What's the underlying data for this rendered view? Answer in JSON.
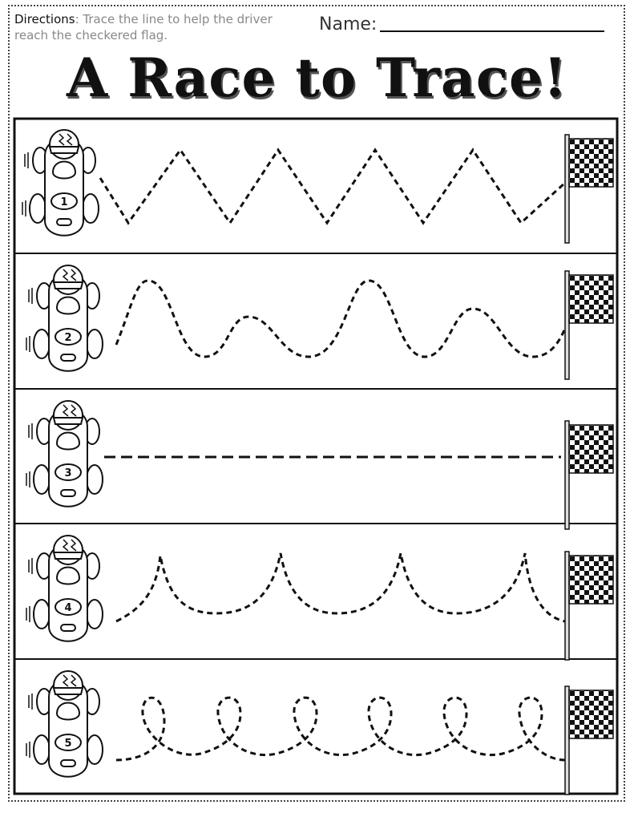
{
  "header": {
    "directions_label": "Directions",
    "directions_text": ": Trace the line to help the driver reach the checkered flag.",
    "name_label": "Name:"
  },
  "title": "A Race to Trace!",
  "rows": [
    {
      "car_number": "1",
      "path": "zigzag"
    },
    {
      "car_number": "2",
      "path": "wave"
    },
    {
      "car_number": "3",
      "path": "straight"
    },
    {
      "car_number": "4",
      "path": "arches"
    },
    {
      "car_number": "5",
      "path": "loops"
    }
  ],
  "icons": {
    "car": "race-car-icon",
    "flag": "checkered-flag-icon"
  }
}
